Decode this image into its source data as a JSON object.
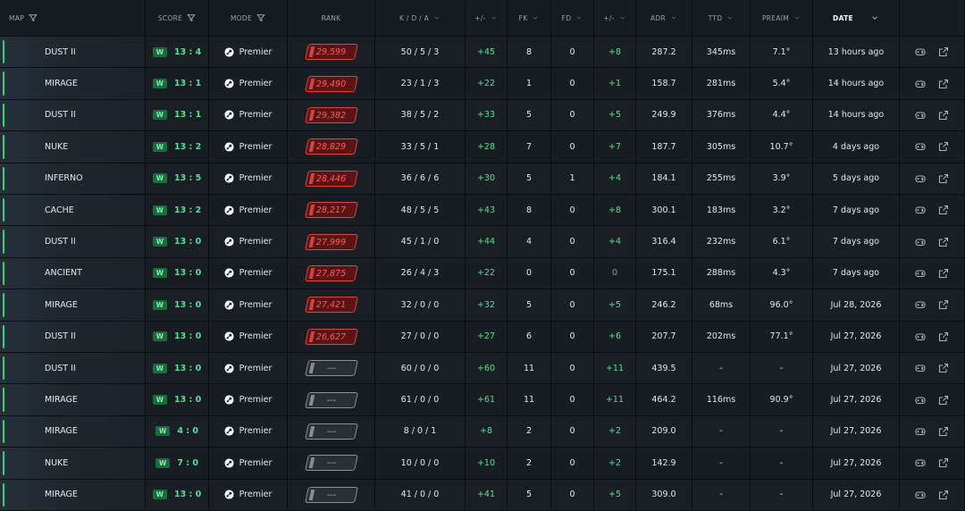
{
  "table": {
    "headers": [
      "MAP",
      "SCORE",
      "MODE",
      "RANK",
      "K / D / A",
      "+/-",
      "FK",
      "FD",
      "+/-",
      "ADR",
      "TTD",
      "PREAIM",
      "DATE"
    ],
    "rows": [
      {
        "map": "DUST II",
        "result": "W",
        "score": "13 : 4",
        "mode": "Premier",
        "rank": "29,599",
        "kda": "50 / 5 / 3",
        "diff": "+45",
        "fk": "8",
        "fd": "0",
        "fk_diff": "+8",
        "adr": "287.2",
        "ttd": "345ms",
        "preaim": "7.1°",
        "date": "13 hours ago"
      },
      {
        "map": "MIRAGE",
        "result": "W",
        "score": "13 : 1",
        "mode": "Premier",
        "rank": "29,490",
        "kda": "23 / 1 / 3",
        "diff": "+22",
        "fk": "1",
        "fd": "0",
        "fk_diff": "+1",
        "adr": "158.7",
        "ttd": "281ms",
        "preaim": "5.4°",
        "date": "14 hours ago"
      },
      {
        "map": "DUST II",
        "result": "W",
        "score": "13 : 1",
        "mode": "Premier",
        "rank": "29,382",
        "kda": "38 / 5 / 2",
        "diff": "+33",
        "fk": "5",
        "fd": "0",
        "fk_diff": "+5",
        "adr": "249.9",
        "ttd": "376ms",
        "preaim": "4.4°",
        "date": "14 hours ago"
      },
      {
        "map": "NUKE",
        "result": "W",
        "score": "13 : 2",
        "mode": "Premier",
        "rank": "28,829",
        "kda": "33 / 5 / 1",
        "diff": "+28",
        "fk": "7",
        "fd": "0",
        "fk_diff": "+7",
        "adr": "187.7",
        "ttd": "305ms",
        "preaim": "10.7°",
        "date": "4 days ago"
      },
      {
        "map": "INFERNO",
        "result": "W",
        "score": "13 : 5",
        "mode": "Premier",
        "rank": "28,446",
        "kda": "36 / 6 / 6",
        "diff": "+30",
        "fk": "5",
        "fd": "1",
        "fk_diff": "+4",
        "adr": "184.1",
        "ttd": "255ms",
        "preaim": "3.9°",
        "date": "5 days ago"
      },
      {
        "map": "CACHE",
        "result": "W",
        "score": "13 : 2",
        "mode": "Premier",
        "rank": "28,217",
        "kda": "48 / 5 / 5",
        "diff": "+43",
        "fk": "8",
        "fd": "0",
        "fk_diff": "+8",
        "adr": "300.1",
        "ttd": "183ms",
        "preaim": "3.2°",
        "date": "7 days ago"
      },
      {
        "map": "DUST II",
        "result": "W",
        "score": "13 : 0",
        "mode": "Premier",
        "rank": "27,999",
        "kda": "45 / 1 / 0",
        "diff": "+44",
        "fk": "4",
        "fd": "0",
        "fk_diff": "+4",
        "adr": "316.4",
        "ttd": "232ms",
        "preaim": "6.1°",
        "date": "7 days ago"
      },
      {
        "map": "ANCIENT",
        "result": "W",
        "score": "13 : 0",
        "mode": "Premier",
        "rank": "27,875",
        "kda": "26 / 4 / 3",
        "diff": "+22",
        "fk": "0",
        "fd": "0",
        "fk_diff": "0",
        "adr": "175.1",
        "ttd": "288ms",
        "preaim": "4.3°",
        "date": "7 days ago"
      },
      {
        "map": "MIRAGE",
        "result": "W",
        "score": "13 : 0",
        "mode": "Premier",
        "rank": "27,421",
        "kda": "32 / 0 / 0",
        "diff": "+32",
        "fk": "5",
        "fd": "0",
        "fk_diff": "+5",
        "adr": "246.2",
        "ttd": "68ms",
        "preaim": "96.0°",
        "date": "Jul 28, 2026"
      },
      {
        "map": "DUST II",
        "result": "W",
        "score": "13 : 0",
        "mode": "Premier",
        "rank": "26,627",
        "kda": "27 / 0 / 0",
        "diff": "+27",
        "fk": "6",
        "fd": "0",
        "fk_diff": "+6",
        "adr": "207.7",
        "ttd": "202ms",
        "preaim": "77.1°",
        "date": "Jul 27, 2026"
      },
      {
        "map": "DUST II",
        "result": "W",
        "score": "13 : 0",
        "mode": "Premier",
        "rank": "---",
        "kda": "60 / 0 / 0",
        "diff": "+60",
        "fk": "11",
        "fd": "0",
        "fk_diff": "+11",
        "adr": "439.5",
        "ttd": "-",
        "preaim": "-",
        "date": "Jul 27, 2026"
      },
      {
        "map": "MIRAGE",
        "result": "W",
        "score": "13 : 0",
        "mode": "Premier",
        "rank": "---",
        "kda": "61 / 0 / 0",
        "diff": "+61",
        "fk": "11",
        "fd": "0",
        "fk_diff": "+11",
        "adr": "464.2",
        "ttd": "116ms",
        "preaim": "90.9°",
        "date": "Jul 27, 2026"
      },
      {
        "map": "MIRAGE",
        "result": "W",
        "score": "4 : 0",
        "mode": "Premier",
        "rank": "---",
        "kda": "8 / 0 / 1",
        "diff": "+8",
        "fk": "2",
        "fd": "0",
        "fk_diff": "+2",
        "adr": "209.0",
        "ttd": "-",
        "preaim": "-",
        "date": "Jul 27, 2026"
      },
      {
        "map": "NUKE",
        "result": "W",
        "score": "7 : 0",
        "mode": "Premier",
        "rank": "---",
        "kda": "10 / 0 / 0",
        "diff": "+10",
        "fk": "2",
        "fd": "0",
        "fk_diff": "+2",
        "adr": "142.9",
        "ttd": "-",
        "preaim": "-",
        "date": "Jul 27, 2026"
      },
      {
        "map": "MIRAGE",
        "result": "W",
        "score": "13 : 0",
        "mode": "Premier",
        "rank": "---",
        "kda": "41 / 0 / 0",
        "diff": "+41",
        "fk": "5",
        "fd": "0",
        "fk_diff": "+5",
        "adr": "309.0",
        "ttd": "-",
        "preaim": "-",
        "date": "Jul 27, 2026"
      }
    ]
  }
}
